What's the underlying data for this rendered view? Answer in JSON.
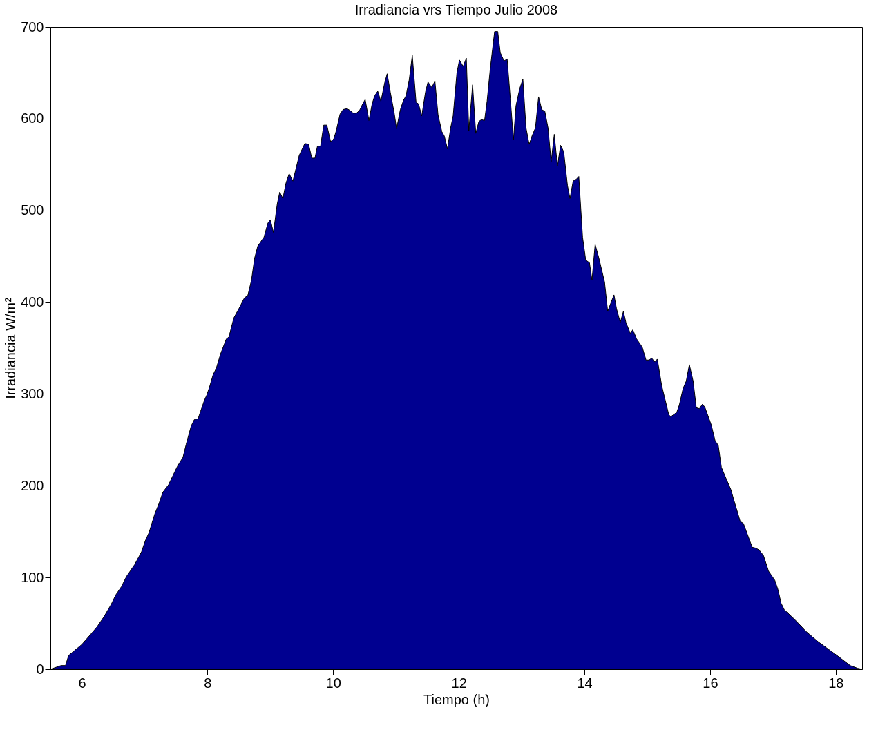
{
  "chart_data": {
    "type": "area",
    "title": "Irradiancia vrs Tiempo Julio 2008",
    "xlabel": "Tiempo (h)",
    "ylabel": "Irradiancia W/m²",
    "xlim": [
      5.5,
      18.42
    ],
    "ylim": [
      0,
      700
    ],
    "xticks": [
      6,
      8,
      10,
      12,
      14,
      16,
      18
    ],
    "yticks": [
      0,
      100,
      200,
      300,
      400,
      500,
      600,
      700
    ],
    "grid": false,
    "series": [
      {
        "color": "#000090",
        "x": [
          5.5,
          5.67,
          5.74,
          5.79,
          5.86,
          6.0,
          6.14,
          6.24,
          6.35,
          6.47,
          6.54,
          6.63,
          6.71,
          6.84,
          6.95,
          7.01,
          7.07,
          7.16,
          7.23,
          7.29,
          7.38,
          7.45,
          7.52,
          7.61,
          7.66,
          7.74,
          7.79,
          7.85,
          7.89,
          7.95,
          7.99,
          8.03,
          8.09,
          8.14,
          8.21,
          8.3,
          8.34,
          8.42,
          8.5,
          8.59,
          8.64,
          8.7,
          8.75,
          8.8,
          8.9,
          8.96,
          9.0,
          9.05,
          9.11,
          9.15,
          9.2,
          9.25,
          9.3,
          9.36,
          9.46,
          9.55,
          9.61,
          9.66,
          9.71,
          9.75,
          9.8,
          9.85,
          9.9,
          9.96,
          10.01,
          10.05,
          10.11,
          10.16,
          10.22,
          10.27,
          10.32,
          10.37,
          10.42,
          10.47,
          10.51,
          10.57,
          10.62,
          10.66,
          10.71,
          10.76,
          10.82,
          10.86,
          10.91,
          10.97,
          11.01,
          11.07,
          11.12,
          11.16,
          11.21,
          11.26,
          11.32,
          11.36,
          11.41,
          11.47,
          11.51,
          11.57,
          11.62,
          11.67,
          11.73,
          11.77,
          11.82,
          11.87,
          11.91,
          11.97,
          12.01,
          12.07,
          12.12,
          12.16,
          12.22,
          12.27,
          12.32,
          12.36,
          12.41,
          12.45,
          12.5,
          12.57,
          12.62,
          12.66,
          12.72,
          12.77,
          12.82,
          12.87,
          12.91,
          12.97,
          13.02,
          13.07,
          13.12,
          13.17,
          13.22,
          13.27,
          13.32,
          13.37,
          13.42,
          13.47,
          13.52,
          13.57,
          13.62,
          13.67,
          13.73,
          13.77,
          13.82,
          13.87,
          13.91,
          13.97,
          14.02,
          14.08,
          14.12,
          14.17,
          14.23,
          14.32,
          14.37,
          14.42,
          14.47,
          14.51,
          14.57,
          14.62,
          14.66,
          14.73,
          14.77,
          14.83,
          14.92,
          14.98,
          15.03,
          15.07,
          15.12,
          15.16,
          15.23,
          15.34,
          15.37,
          15.47,
          15.51,
          15.57,
          15.62,
          15.67,
          15.73,
          15.78,
          15.83,
          15.88,
          15.92,
          16.02,
          16.08,
          16.13,
          16.18,
          16.26,
          16.33,
          16.38,
          16.42,
          16.48,
          16.53,
          16.67,
          16.73,
          16.78,
          16.85,
          16.93,
          17.03,
          17.08,
          17.13,
          17.18,
          17.35,
          17.53,
          17.72,
          18.02,
          18.23,
          18.35,
          18.42
        ],
        "values": [
          0,
          4,
          4,
          15,
          19,
          27,
          38,
          46,
          57,
          71,
          81,
          90,
          101,
          114,
          128,
          140,
          149,
          169,
          181,
          193,
          201,
          211,
          221,
          231,
          245,
          265,
          272,
          273,
          281,
          293,
          299,
          307,
          321,
          328,
          344,
          360,
          362,
          383,
          393,
          405,
          407,
          424,
          448,
          461,
          471,
          486,
          490,
          476,
          507,
          520,
          513,
          530,
          540,
          532,
          560,
          573,
          572,
          557,
          557,
          570,
          570,
          593,
          593,
          575,
          578,
          587,
          605,
          610,
          611,
          609,
          606,
          606,
          609,
          616,
          621,
          598,
          616,
          625,
          630,
          619,
          639,
          649,
          629,
          607,
          589,
          610,
          620,
          625,
          642,
          669,
          618,
          616,
          603,
          629,
          640,
          634,
          641,
          604,
          586,
          581,
          567,
          590,
          603,
          650,
          664,
          657,
          666,
          587,
          637,
          584,
          597,
          599,
          598,
          619,
          654,
          695,
          695,
          672,
          663,
          665,
          622,
          577,
          614,
          633,
          643,
          590,
          572,
          582,
          590,
          624,
          610,
          608,
          590,
          553,
          583,
          548,
          571,
          564,
          527,
          513,
          532,
          534,
          537,
          471,
          446,
          443,
          424,
          463,
          448,
          422,
          390,
          399,
          408,
          393,
          378,
          390,
          378,
          366,
          370,
          360,
          351,
          337,
          337,
          339,
          335,
          338,
          309,
          278,
          275,
          280,
          288,
          306,
          314,
          332,
          314,
          285,
          284,
          289,
          285,
          266,
          249,
          244,
          220,
          207,
          196,
          184,
          175,
          161,
          159,
          133,
          132,
          130,
          124,
          107,
          97,
          87,
          72,
          65,
          54,
          41,
          30,
          15,
          4,
          1,
          0
        ]
      }
    ]
  }
}
